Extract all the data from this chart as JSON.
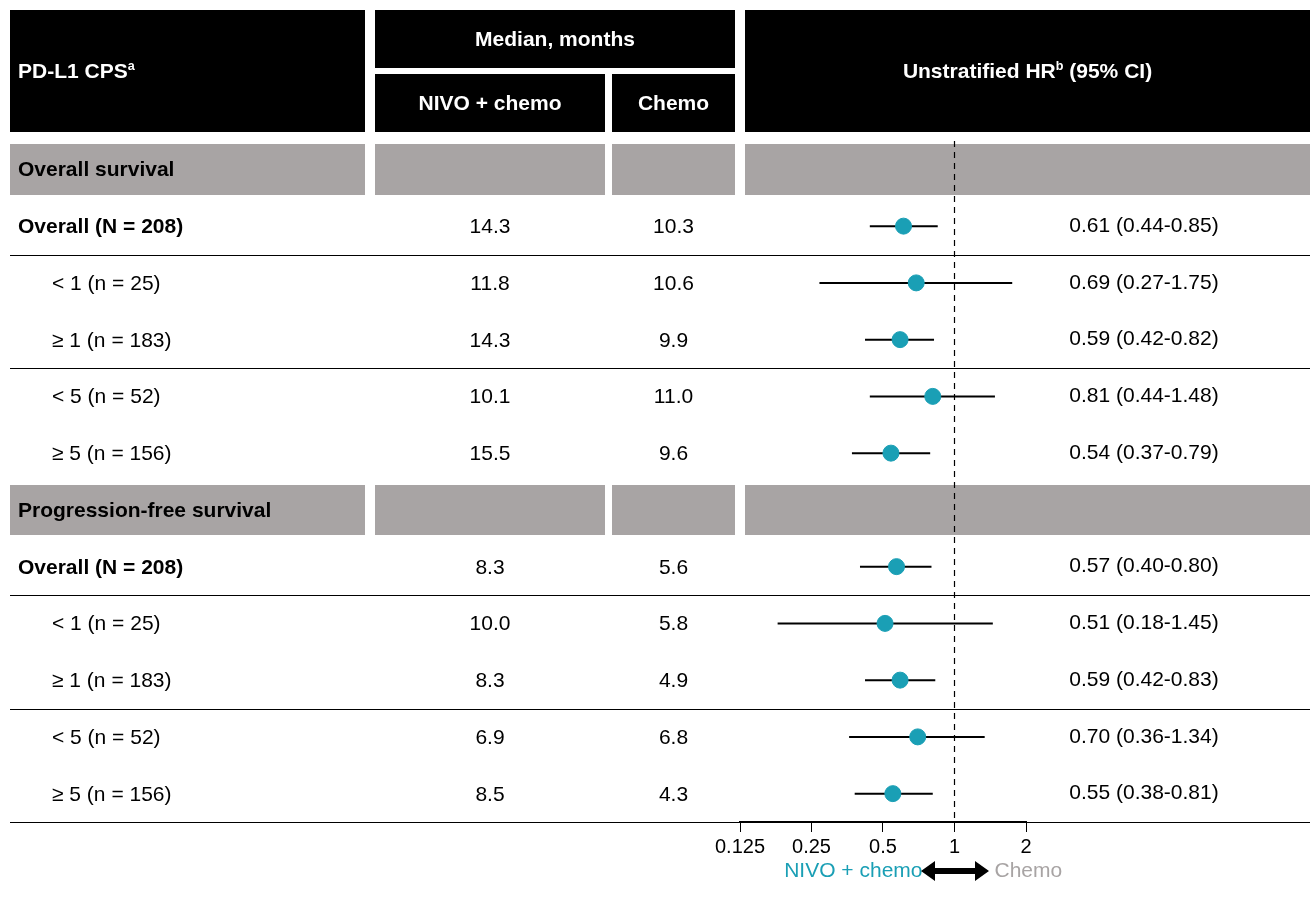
{
  "chart_data": [
    {
      "type": "other",
      "title": "Median, months",
      "ylabel": "PD-L1 CPS$^{a}$",
      "categories": [
        "NIVO + chemo",
        "Chemo"
      ],
      "y_categories": [
        "Overall survival",
        "Overall (N = 208)",
        "< 1 (n = 25)",
        "≥ 1 (n = 183)",
        "< 5 (n = 52)",
        "≥ 5 (n = 156)",
        "Progression-free survival",
        "Overall (N = 208)",
        "< 1 (n = 25)",
        "≥ 1 (n = 183)",
        "< 5 (n = 52)",
        "≥ 5 (n = 156)"
      ],
      "cell_labels": [
        null,
        [
          "14.3",
          "10.3"
        ],
        [
          "11.8",
          "10.6"
        ],
        [
          "14.3",
          "9.9"
        ],
        [
          "10.1",
          "11.0"
        ],
        [
          "15.5",
          "9.6"
        ],
        null,
        [
          "8.3",
          "5.6"
        ],
        [
          "10.0",
          "5.8"
        ],
        [
          "8.3",
          "4.9"
        ],
        [
          "6.9",
          "6.8"
        ],
        [
          "8.5",
          "4.3"
        ]
      ]
    },
    {
      "type": "scatter",
      "title": "Unstratified HR$^{b}$ (95% CI)",
      "categories": [
        null,
        null,
        null,
        null,
        null,
        null,
        null,
        null,
        null,
        null,
        null,
        null
      ],
      "values": [
        null,
        0.61,
        0.69,
        0.59,
        0.81,
        0.54,
        null,
        0.57,
        0.51,
        0.59,
        0.7,
        0.55
      ],
      "errors": [
        null,
        [
          0.44,
          0.85
        ],
        [
          0.27,
          1.75
        ],
        [
          0.42,
          0.82
        ],
        [
          0.44,
          1.48
        ],
        [
          0.37,
          0.79
        ],
        null,
        [
          0.4,
          0.8
        ],
        [
          0.18,
          1.45
        ],
        [
          0.42,
          0.83
        ],
        [
          0.36,
          1.34
        ],
        [
          0.38,
          0.81
        ]
      ],
      "value_labels": [
        null,
        "0.61 (0.44-0.85)",
        "0.69 (0.27-1.75)",
        "0.59 (0.42-0.82)",
        "0.81 (0.44-1.48)",
        "0.54 (0.37-0.79)",
        null,
        "0.57 (0.40-0.80)",
        "0.51 (0.18-1.45)",
        "0.59 (0.42-0.83)",
        "0.70 (0.36-1.34)",
        "0.55 (0.38-0.81)"
      ],
      "orientation": "horizontal",
      "color": "#1a9fb5",
      "marker": "circle",
      "log": "x",
      "xlim": [
        0.125,
        2
      ],
      "xticks": [
        0.125,
        0.25,
        0.5,
        1,
        2
      ],
      "ref_lines": [
        {
          "axis": "x",
          "value": 1,
          "line_style": "dashed"
        }
      ],
      "tick_labels": "x",
      "annotations": [
        "NIVO + chemo",
        "Chemo"
      ]
    }
  ]
}
